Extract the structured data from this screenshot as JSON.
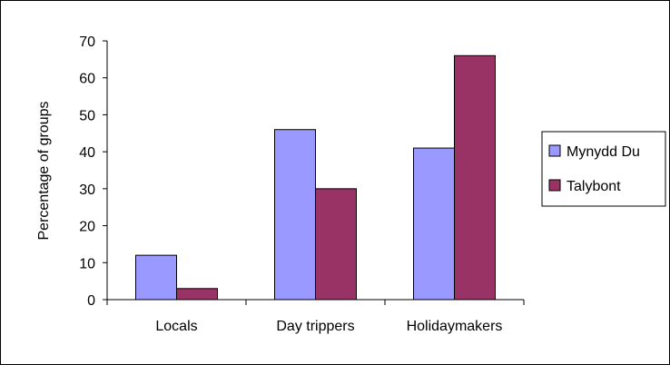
{
  "chart_data": {
    "type": "bar",
    "title": "",
    "xlabel": "",
    "ylabel": "Percentage of groups",
    "categories": [
      "Locals",
      "Day trippers",
      "Holidaymakers"
    ],
    "series": [
      {
        "name": "Mynydd Du",
        "values": [
          12,
          46,
          41
        ],
        "color": "#9999ff"
      },
      {
        "name": "Talybont",
        "values": [
          3,
          30,
          66
        ],
        "color": "#993366"
      }
    ],
    "ylim": [
      0,
      70
    ],
    "yticks": [
      "0",
      "10",
      "20",
      "30",
      "40",
      "50",
      "60",
      "70"
    ],
    "grid": false,
    "legend_position": "right"
  }
}
